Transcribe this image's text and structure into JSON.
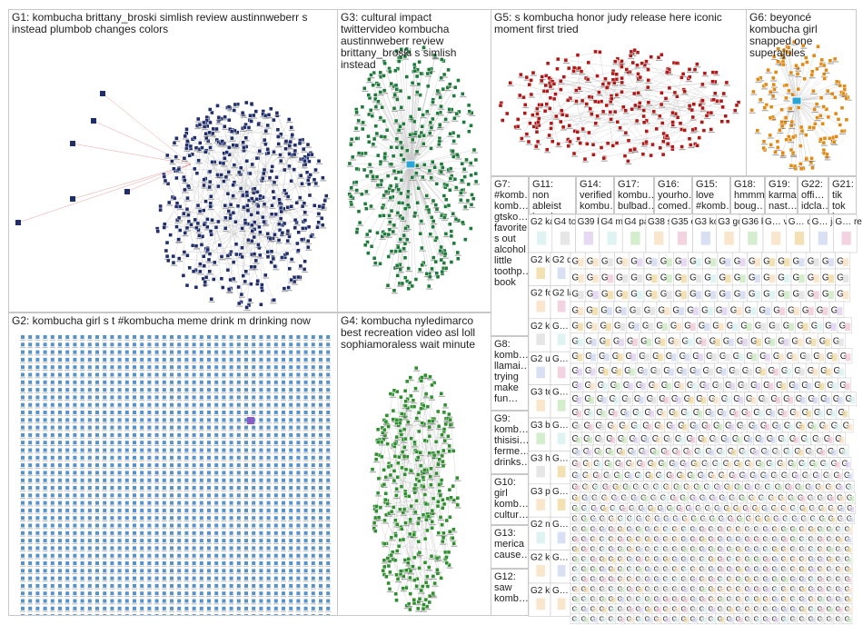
{
  "colors": {
    "G1": "#1f2d6b",
    "G2": "#3a7fc0",
    "G3": "#1e7a3a",
    "G4": "#2f8f2f",
    "G5": "#b01818",
    "G6": "#e08a14",
    "edge": "#9a9a9a",
    "border": "#c8c8c8"
  },
  "groups": {
    "G1": "G1: kombucha brittany_broski simlish review austinnweberr s instead plumbob changes colors",
    "G2": "G2: kombucha girl s t #kombucha meme drink m drinking now",
    "G3": "G3: cultural impact twittervideo kombucha austinnweberr review brittany_broski s simlish instead",
    "G4": "G4: kombucha nyledimarco best recreation video asl loll sophiamoraless wait minute",
    "G5": "G5: s kombucha honor judy release here iconic moment first tried",
    "G6": "G6: beyoncé kombucha girl snapped one superajules",
    "G7": "G7: #komb… komb… gtsko… favorite s out alcohol little toothp… book",
    "G8": "G8: komb… llamai… trying make fun…",
    "G9": "G9: komb… thisisi… ferme… drinks…",
    "G10": "G10: girl komb… cultur…",
    "G11": "G11: non ableist insults…",
    "G12": "G12: saw komb…",
    "G13": "G13: merica cause…",
    "G14": "G14: verified kombu…",
    "G15": "G15: love #komb…",
    "G16": "G16: yourho… comed…",
    "G17": "G17: kombu… bulbad…",
    "G18": "G18: hmmm boug…",
    "G19": "G19: karma nast…",
    "G21": "G21: tik tok kom…",
    "G22": "G22: offi… idcla…"
  },
  "small_labels": {
    "r1": [
      "G2 ka… up…",
      "G4 tod… k…",
      "G39 ko…",
      "G4 mi…",
      "G4 par…",
      "G38 sep…",
      "G35 offi…",
      "G3 ko…",
      "G3 go…",
      "G36 ko…",
      "G… vi…",
      "G… ch…",
      "G… jav…",
      "G… re…"
    ],
    "col1": [
      "G2 ko…",
      "G2 for…",
      "G2 ko…",
      "G2 urs…",
      "G3 ter…",
      "G3 bat…",
      "G3 he…",
      "G3 pm…",
      "G2 ne…",
      "G2 ko…",
      "G2 ko…"
    ],
    "col2": [
      "G2 d…",
      "G2 la…",
      "G…",
      "G…",
      "G…",
      "G…",
      "G…",
      "G…",
      "G…",
      "G…",
      "G…"
    ],
    "tiny": "G"
  }
}
